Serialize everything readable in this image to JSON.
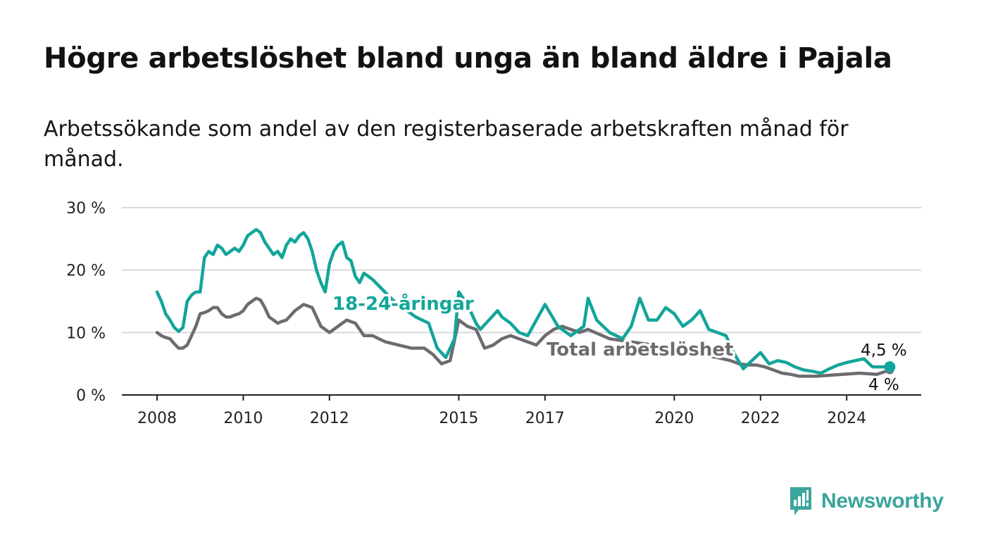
{
  "title": "Högre arbetslöshet bland unga än bland äldre i Pajala",
  "subtitle": "Arbetssökande som andel av den registerbaserade arbetskraften månad för månad.",
  "logo": {
    "text": "Newsworthy",
    "color": "#3aa59d"
  },
  "colors": {
    "youth": "#13a59a",
    "total": "#6e6b70",
    "grid": "#d9d9d9",
    "axis": "#222222"
  },
  "chart_data": {
    "type": "line",
    "title": "Högre arbetslöshet bland unga än bland äldre i Pajala",
    "ylabel": "",
    "xlabel": "",
    "ylim": [
      0,
      30
    ],
    "xlim": [
      2007.75,
      2026.35
    ],
    "y_ticks": [
      0,
      10,
      20,
      30
    ],
    "y_tick_labels": [
      "0 %",
      "10 %",
      "20 %",
      "30 %"
    ],
    "x_ticks": [
      2008,
      2010,
      2012,
      2015,
      2017,
      2020,
      2022,
      2024
    ],
    "x_tick_labels": [
      "2008",
      "2010",
      "2012",
      "2015",
      "2017",
      "2020",
      "2022",
      "2024"
    ],
    "grid": true,
    "series": [
      {
        "name": "18-24-åringar",
        "end_label": "4,5 %",
        "x": [
          2008.0,
          2008.1,
          2008.2,
          2008.3,
          2008.4,
          2008.5,
          2008.6,
          2008.7,
          2008.8,
          2008.9,
          2009.0,
          2009.1,
          2009.2,
          2009.3,
          2009.4,
          2009.5,
          2009.6,
          2009.7,
          2009.8,
          2009.9,
          2010.0,
          2010.1,
          2010.2,
          2010.3,
          2010.4,
          2010.5,
          2010.6,
          2010.7,
          2010.8,
          2010.9,
          2011.0,
          2011.1,
          2011.2,
          2011.3,
          2011.4,
          2011.5,
          2011.6,
          2011.7,
          2011.8,
          2011.9,
          2012.0,
          2012.1,
          2012.2,
          2012.3,
          2012.4,
          2012.5,
          2012.6,
          2012.7,
          2012.8,
          2012.9,
          2013.0,
          2013.5,
          2014.0,
          2014.3,
          2014.5,
          2014.7,
          2014.9,
          2015.0,
          2015.2,
          2015.4,
          2015.5,
          2015.7,
          2015.9,
          2016.0,
          2016.2,
          2016.4,
          2016.6,
          2016.8,
          2017.0,
          2017.3,
          2017.6,
          2017.9,
          2018.0,
          2018.2,
          2018.5,
          2018.8,
          2019.0,
          2019.2,
          2019.4,
          2019.6,
          2019.8,
          2020.0,
          2020.2,
          2020.4,
          2020.6,
          2020.8,
          2021.0,
          2021.2,
          2021.4,
          2021.6,
          2021.8,
          2022.0,
          2022.2,
          2022.4,
          2022.6,
          2022.8,
          2023.0,
          2023.2,
          2023.4,
          2023.6,
          2023.8,
          2024.0,
          2024.2,
          2024.4,
          2024.6,
          2024.8,
          2025.0
        ],
        "y": [
          16.5,
          15.0,
          13.0,
          12.0,
          10.8,
          10.2,
          10.8,
          15.0,
          16.0,
          16.5,
          16.5,
          22.0,
          23.0,
          22.5,
          24.0,
          23.5,
          22.5,
          23.0,
          23.5,
          23.0,
          24.0,
          25.5,
          26.0,
          26.5,
          26.0,
          24.5,
          23.5,
          22.5,
          23.0,
          22.0,
          24.0,
          25.0,
          24.5,
          25.5,
          26.0,
          25.0,
          23.0,
          20.0,
          18.0,
          16.5,
          21.0,
          23.0,
          24.0,
          24.5,
          22.0,
          21.5,
          19.0,
          18.0,
          19.5,
          19.0,
          18.5,
          15.0,
          12.5,
          11.5,
          7.5,
          6.0,
          9.0,
          16.5,
          14.5,
          11.5,
          10.5,
          12.0,
          13.5,
          12.5,
          11.5,
          10.0,
          9.5,
          12.0,
          14.5,
          11.0,
          9.5,
          11.0,
          15.5,
          12.0,
          10.0,
          9.0,
          11.0,
          15.5,
          12.0,
          12.0,
          14.0,
          13.0,
          11.0,
          12.0,
          13.5,
          10.5,
          10.0,
          9.5,
          6.5,
          4.2,
          5.5,
          6.8,
          5.0,
          5.5,
          5.2,
          4.5,
          4.0,
          3.8,
          3.5,
          4.2,
          4.8,
          5.2,
          5.5,
          5.8,
          4.5,
          4.5,
          4.5
        ]
      },
      {
        "name": "Total arbetslöshet",
        "end_label": "4 %",
        "x": [
          2008.0,
          2008.1,
          2008.2,
          2008.3,
          2008.4,
          2008.5,
          2008.6,
          2008.7,
          2008.8,
          2008.9,
          2009.0,
          2009.1,
          2009.2,
          2009.3,
          2009.4,
          2009.5,
          2009.6,
          2009.7,
          2009.8,
          2009.9,
          2010.0,
          2010.1,
          2010.2,
          2010.3,
          2010.4,
          2010.5,
          2010.6,
          2010.7,
          2010.8,
          2010.9,
          2011.0,
          2011.2,
          2011.4,
          2011.6,
          2011.8,
          2012.0,
          2012.2,
          2012.4,
          2012.6,
          2012.8,
          2013.0,
          2013.3,
          2013.6,
          2013.9,
          2014.2,
          2014.4,
          2014.6,
          2014.8,
          2015.0,
          2015.2,
          2015.4,
          2015.6,
          2015.8,
          2016.0,
          2016.2,
          2016.4,
          2016.6,
          2016.8,
          2017.0,
          2017.2,
          2017.4,
          2017.6,
          2017.8,
          2018.0,
          2018.5,
          2019.0,
          2019.5,
          2020.0,
          2020.5,
          2021.0,
          2021.3,
          2021.5,
          2021.7,
          2021.9,
          2022.1,
          2022.3,
          2022.5,
          2022.7,
          2022.9,
          2023.1,
          2023.3,
          2023.5,
          2023.7,
          2023.9,
          2024.1,
          2024.3,
          2024.5,
          2024.7,
          2025.0
        ],
        "y": [
          10.0,
          9.5,
          9.2,
          9.0,
          8.2,
          7.5,
          7.5,
          8.0,
          9.5,
          11.0,
          13.0,
          13.2,
          13.5,
          14.0,
          14.0,
          13.0,
          12.5,
          12.5,
          12.8,
          13.0,
          13.5,
          14.5,
          15.0,
          15.5,
          15.2,
          14.0,
          12.5,
          12.0,
          11.5,
          11.8,
          12.0,
          13.5,
          14.5,
          14.0,
          11.0,
          10.0,
          11.0,
          12.0,
          11.5,
          9.5,
          9.5,
          8.5,
          8.0,
          7.5,
          7.5,
          6.5,
          5.0,
          5.5,
          12.0,
          11.0,
          10.5,
          7.5,
          8.0,
          9.0,
          9.5,
          9.0,
          8.5,
          8.0,
          9.5,
          10.5,
          11.0,
          10.5,
          10.0,
          10.5,
          9.0,
          8.5,
          8.0,
          7.0,
          6.5,
          6.0,
          5.5,
          5.0,
          4.8,
          4.8,
          4.5,
          4.0,
          3.5,
          3.3,
          3.0,
          3.0,
          3.0,
          3.1,
          3.2,
          3.3,
          3.4,
          3.5,
          3.4,
          3.3,
          4.0
        ]
      }
    ]
  }
}
